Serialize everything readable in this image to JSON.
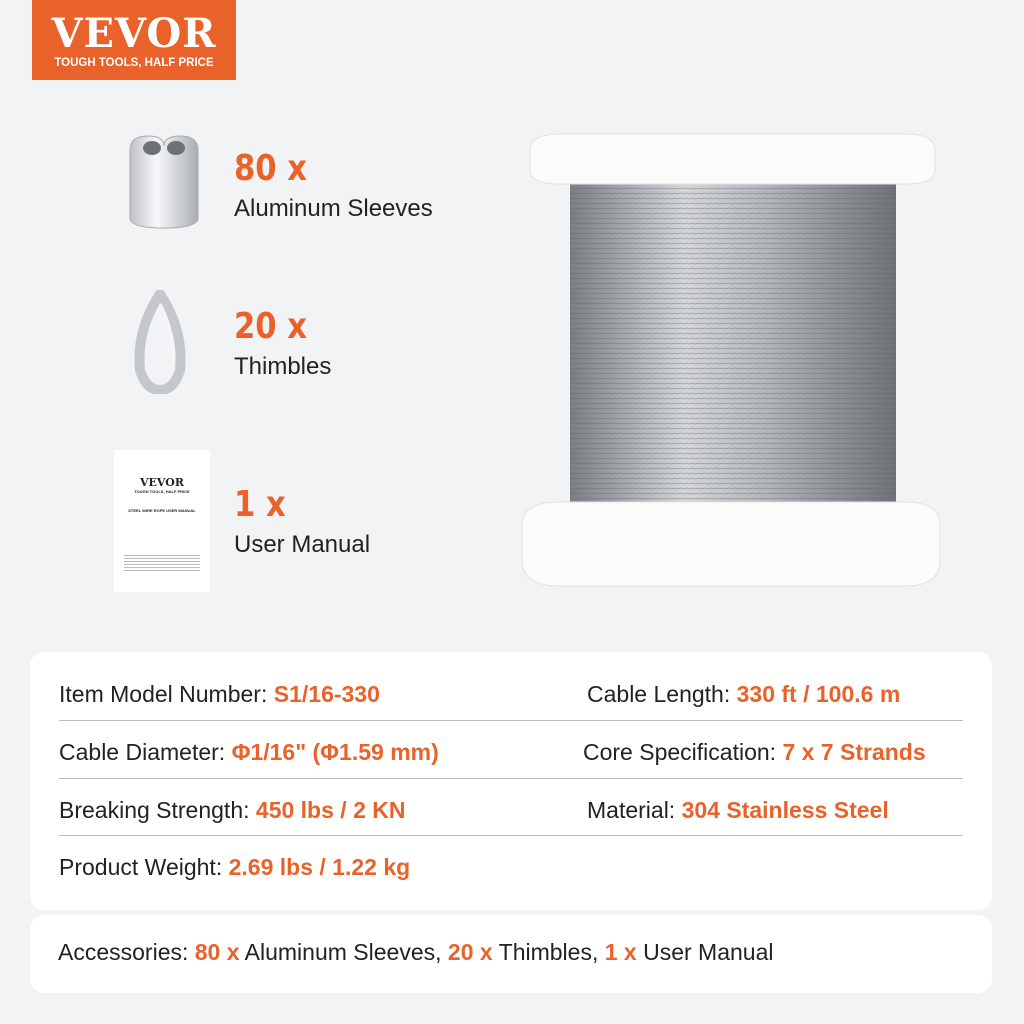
{
  "logo": {
    "brand": "VEVOR",
    "tagline": "TOUGH TOOLS, HALF PRICE"
  },
  "items": [
    {
      "qty": "80 x",
      "label": "Aluminum Sleeves"
    },
    {
      "qty": "20 x",
      "label": "Thimbles"
    },
    {
      "qty": "1 x",
      "label": "User Manual"
    }
  ],
  "manual": {
    "brand": "VEVOR",
    "tagline": "TOUGH TOOLS, HALF PRICE",
    "title": "STEEL WIRE ROPE USER MANUAL"
  },
  "specs": [
    {
      "label": "Item Model Number: ",
      "value": "S1/16-330"
    },
    {
      "label": "Cable Length: ",
      "value": "330 ft / 100.6 m"
    },
    {
      "label": "Cable Diameter: ",
      "value": "Φ1/16\" (Φ1.59 mm)"
    },
    {
      "label": "Core Specification: ",
      "value": "7 x 7 Strands"
    },
    {
      "label": "Breaking Strength: ",
      "value": "450 lbs / 2 KN"
    },
    {
      "label": "Material: ",
      "value": "304 Stainless Steel"
    },
    {
      "label": "Product Weight: ",
      "value": "2.69 lbs / 1.22 kg"
    }
  ],
  "accessories": {
    "label": "Accessories: ",
    "q1": "80 x",
    "t1": " Aluminum Sleeves, ",
    "q2": "20 x",
    "t2": " Thimbles, ",
    "q3": "1 x",
    "t3": " User Manual"
  },
  "colors": {
    "accent": "#e8622a",
    "background": "#f2f3f5"
  }
}
